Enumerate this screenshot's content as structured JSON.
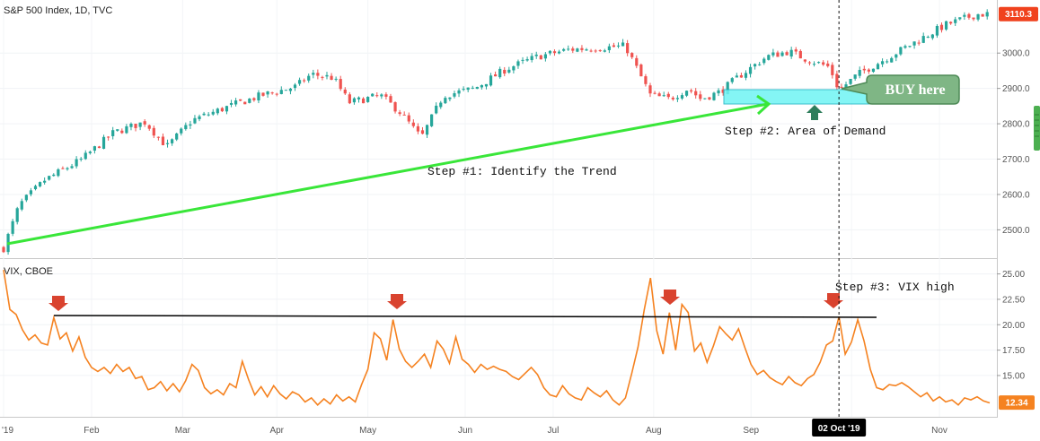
{
  "chart_data": [
    {
      "type": "candlestick",
      "title": "S&P 500 Index, 1D, TVC",
      "ylim": [
        2430,
        3140
      ],
      "yticks": [
        2500,
        2600,
        2700,
        2800,
        2900,
        3000
      ],
      "ytick_labels": [
        "2500.0",
        "2600.0",
        "2700.0",
        "2800.0",
        "2900.0",
        "3000.0"
      ],
      "last_value": 3110.3,
      "last_value_label": "3110.3",
      "anchors": [
        {
          "d": 0,
          "v": 2448
        },
        {
          "d": 5,
          "v": 2570
        },
        {
          "d": 13,
          "v": 2640
        },
        {
          "d": 25,
          "v": 2700
        },
        {
          "d": 35,
          "v": 2775
        },
        {
          "d": 45,
          "v": 2805
        },
        {
          "d": 52,
          "v": 2735
        },
        {
          "d": 60,
          "v": 2810
        },
        {
          "d": 72,
          "v": 2850
        },
        {
          "d": 82,
          "v": 2880
        },
        {
          "d": 93,
          "v": 2905
        },
        {
          "d": 98,
          "v": 2940
        },
        {
          "d": 105,
          "v": 2930
        },
        {
          "d": 110,
          "v": 2860
        },
        {
          "d": 120,
          "v": 2880
        },
        {
          "d": 126,
          "v": 2835
        },
        {
          "d": 133,
          "v": 2760
        },
        {
          "d": 140,
          "v": 2880
        },
        {
          "d": 150,
          "v": 2900
        },
        {
          "d": 160,
          "v": 2955
        },
        {
          "d": 170,
          "v": 2990
        },
        {
          "d": 180,
          "v": 3010
        },
        {
          "d": 190,
          "v": 3015
        },
        {
          "d": 198,
          "v": 3020
        },
        {
          "d": 202,
          "v": 2950
        },
        {
          "d": 206,
          "v": 2880
        },
        {
          "d": 212,
          "v": 2870
        },
        {
          "d": 218,
          "v": 2900
        },
        {
          "d": 222,
          "v": 2870
        },
        {
          "d": 228,
          "v": 2890
        },
        {
          "d": 235,
          "v": 2940
        },
        {
          "d": 243,
          "v": 2990
        },
        {
          "d": 250,
          "v": 3005
        },
        {
          "d": 255,
          "v": 2985
        },
        {
          "d": 263,
          "v": 2960
        },
        {
          "d": 266,
          "v": 2895
        },
        {
          "d": 272,
          "v": 2940
        },
        {
          "d": 280,
          "v": 2980
        },
        {
          "d": 290,
          "v": 3030
        },
        {
          "d": 300,
          "v": 3080
        },
        {
          "d": 310,
          "v": 3110
        },
        {
          "d": 314,
          "v": 3110
        }
      ]
    },
    {
      "type": "line",
      "title": "VIX, CBOE",
      "ylim": [
        11.2,
        26.2
      ],
      "yticks": [
        15,
        17.5,
        20,
        22.5,
        25
      ],
      "ytick_labels": [
        "15.00",
        "17.50",
        "20.00",
        "22.50",
        "25.00"
      ],
      "last_value": 12.34,
      "last_value_label": "12.34",
      "points": [
        [
          0,
          25.4
        ],
        [
          2,
          21.5
        ],
        [
          4,
          21
        ],
        [
          6,
          19.5
        ],
        [
          8,
          18.5
        ],
        [
          10,
          19
        ],
        [
          12,
          18.2
        ],
        [
          14,
          18
        ],
        [
          16,
          20.7
        ],
        [
          18,
          18.6
        ],
        [
          20,
          19.2
        ],
        [
          22,
          17.4
        ],
        [
          24,
          18.8
        ],
        [
          26,
          16.8
        ],
        [
          28,
          15.8
        ],
        [
          30,
          15.4
        ],
        [
          32,
          15.8
        ],
        [
          34,
          15.2
        ],
        [
          36,
          16.1
        ],
        [
          38,
          15.4
        ],
        [
          40,
          15.8
        ],
        [
          42,
          14.7
        ],
        [
          44,
          14.9
        ],
        [
          46,
          13.6
        ],
        [
          48,
          13.8
        ],
        [
          50,
          14.4
        ],
        [
          52,
          13.5
        ],
        [
          54,
          14.2
        ],
        [
          56,
          13.4
        ],
        [
          58,
          14.5
        ],
        [
          60,
          16.1
        ],
        [
          62,
          15.5
        ],
        [
          64,
          13.8
        ],
        [
          66,
          13.2
        ],
        [
          68,
          13.6
        ],
        [
          70,
          13.1
        ],
        [
          72,
          14.2
        ],
        [
          74,
          13.8
        ],
        [
          76,
          16.4
        ],
        [
          78,
          14.6
        ],
        [
          80,
          13.1
        ],
        [
          82,
          13.9
        ],
        [
          84,
          12.9
        ],
        [
          86,
          14.0
        ],
        [
          88,
          13.2
        ],
        [
          90,
          12.7
        ],
        [
          92,
          13.4
        ],
        [
          94,
          13.1
        ],
        [
          96,
          12.4
        ],
        [
          98,
          12.8
        ],
        [
          100,
          12.1
        ],
        [
          102,
          12.7
        ],
        [
          104,
          12.2
        ],
        [
          106,
          13.1
        ],
        [
          108,
          12.5
        ],
        [
          110,
          12.9
        ],
        [
          112,
          12.4
        ],
        [
          114,
          14.1
        ],
        [
          116,
          15.6
        ],
        [
          118,
          19.2
        ],
        [
          120,
          18.6
        ],
        [
          122,
          16.5
        ],
        [
          124,
          20.5
        ],
        [
          126,
          17.6
        ],
        [
          128,
          16.4
        ],
        [
          130,
          15.8
        ],
        [
          132,
          16.4
        ],
        [
          134,
          17.1
        ],
        [
          136,
          15.8
        ],
        [
          138,
          18.4
        ],
        [
          140,
          17.6
        ],
        [
          142,
          16.2
        ],
        [
          144,
          18.8
        ],
        [
          146,
          16.6
        ],
        [
          148,
          16.1
        ],
        [
          150,
          15.3
        ],
        [
          152,
          16.1
        ],
        [
          154,
          15.6
        ],
        [
          156,
          15.9
        ],
        [
          158,
          15.6
        ],
        [
          160,
          15.4
        ],
        [
          162,
          14.9
        ],
        [
          164,
          14.6
        ],
        [
          166,
          15.2
        ],
        [
          168,
          15.8
        ],
        [
          170,
          15.1
        ],
        [
          172,
          13.8
        ],
        [
          174,
          13.1
        ],
        [
          176,
          12.9
        ],
        [
          178,
          14.0
        ],
        [
          180,
          13.2
        ],
        [
          182,
          12.8
        ],
        [
          184,
          12.6
        ],
        [
          186,
          13.8
        ],
        [
          188,
          13.3
        ],
        [
          190,
          12.9
        ],
        [
          192,
          13.5
        ],
        [
          194,
          12.6
        ],
        [
          196,
          12.1
        ],
        [
          198,
          12.8
        ],
        [
          200,
          15.2
        ],
        [
          202,
          17.8
        ],
        [
          204,
          21.5
        ],
        [
          206,
          24.6
        ],
        [
          208,
          19.4
        ],
        [
          210,
          17.1
        ],
        [
          212,
          21.2
        ],
        [
          214,
          17.5
        ],
        [
          216,
          22.0
        ],
        [
          218,
          21.2
        ],
        [
          220,
          17.4
        ],
        [
          222,
          18.2
        ],
        [
          224,
          16.3
        ],
        [
          226,
          17.9
        ],
        [
          228,
          19.8
        ],
        [
          230,
          19.1
        ],
        [
          232,
          18.5
        ],
        [
          234,
          19.6
        ],
        [
          236,
          17.8
        ],
        [
          238,
          16.1
        ],
        [
          240,
          15.1
        ],
        [
          242,
          15.5
        ],
        [
          244,
          14.8
        ],
        [
          246,
          14.4
        ],
        [
          248,
          14.1
        ],
        [
          250,
          14.9
        ],
        [
          252,
          14.3
        ],
        [
          254,
          14.0
        ],
        [
          256,
          14.7
        ],
        [
          258,
          15.1
        ],
        [
          260,
          16.3
        ],
        [
          262,
          18.0
        ],
        [
          264,
          18.4
        ],
        [
          266,
          20.8
        ],
        [
          268,
          17.1
        ],
        [
          270,
          18.3
        ],
        [
          272,
          20.5
        ],
        [
          274,
          18.4
        ],
        [
          276,
          15.6
        ],
        [
          278,
          13.8
        ],
        [
          280,
          13.6
        ],
        [
          282,
          14.1
        ],
        [
          284,
          14.0
        ],
        [
          286,
          14.3
        ],
        [
          288,
          13.9
        ],
        [
          290,
          13.4
        ],
        [
          292,
          12.9
        ],
        [
          294,
          13.3
        ],
        [
          296,
          12.5
        ],
        [
          298,
          12.9
        ],
        [
          300,
          12.4
        ],
        [
          302,
          12.6
        ],
        [
          304,
          12.1
        ],
        [
          306,
          12.8
        ],
        [
          308,
          12.6
        ],
        [
          310,
          12.9
        ],
        [
          312,
          12.5
        ],
        [
          314,
          12.3
        ]
      ]
    }
  ],
  "x_axis": {
    "tick_labels": [
      "'19",
      "Feb",
      "Mar",
      "Apr",
      "May",
      "Jun",
      "Jul",
      "Aug",
      "Sep",
      "Oct",
      "Nov"
    ],
    "tick_days": [
      0,
      28,
      57,
      87,
      116,
      147,
      175,
      207,
      238,
      270,
      298
    ],
    "cursor_label": "02 Oct '19",
    "cursor_day": 266
  },
  "annotations": {
    "step1": "Step #1: Identify the Trend",
    "step2": "Step #2: Area of Demand",
    "step3": "Step #3: VIX high",
    "buy": "BUY here"
  },
  "colors": {
    "candle_up": "#26a69a",
    "candle_down": "#ef5350",
    "trendline": "#39e639",
    "demand_zone": "#6ff4f4",
    "vix_line": "#f58220",
    "vix_high_line": "#000000",
    "arrow_marker": "#d9432f",
    "buy_box": "#7fb685",
    "step2_arrow": "#2e7d5b",
    "last_value_tag": "#f0421e",
    "cursor_tag": "#000000"
  }
}
